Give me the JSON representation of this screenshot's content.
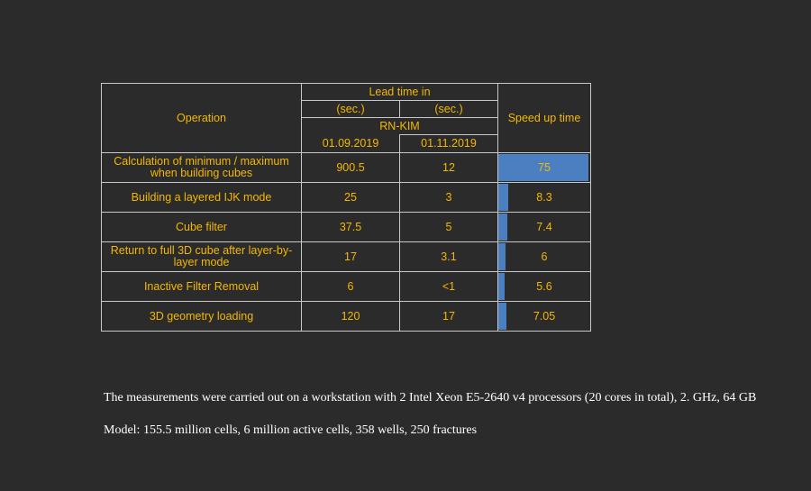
{
  "header": {
    "operation": "Operation",
    "lead_time": "Lead time in",
    "sec_1": "(sec.)",
    "sec_2": "(sec.)",
    "system": "RN-KIM",
    "date_1": "01.09.2019",
    "date_2": "01.11.2019",
    "speed_up": "Speed up time"
  },
  "max_speedup": 75,
  "rows": [
    {
      "operation": "Calculation of minimum / maximum when building cubes",
      "t1": "900.5",
      "t2": "12",
      "speedup": "75",
      "speedup_value": 75
    },
    {
      "operation": "Building a layered IJK mode",
      "t1": "25",
      "t2": "3",
      "speedup": "8.3",
      "speedup_value": 8.3
    },
    {
      "operation": "Cube filter",
      "t1": "37.5",
      "t2": "5",
      "speedup": "7.4",
      "speedup_value": 7.4
    },
    {
      "operation": "Return to full 3D cube after layer-by-layer mode",
      "t1": "17",
      "t2": "3.1",
      "speedup": "6",
      "speedup_value": 6
    },
    {
      "operation": "Inactive Filter Removal",
      "t1": "6",
      "t2": "<1",
      "speedup": "5.6",
      "speedup_value": 5.6
    },
    {
      "operation": "3D geometry loading",
      "t1": "120",
      "t2": "17",
      "speedup": "7.05",
      "speedup_value": 7.05
    }
  ],
  "notes": {
    "hardware": "The measurements were carried out on a workstation with 2 Intel Xeon E5-2640 v4 processors (20 cores in total), 2. GHz, 64 GB",
    "model": "Model: 155.5 million cells, 6 million active cells, 358 wells, 250 fractures"
  }
}
